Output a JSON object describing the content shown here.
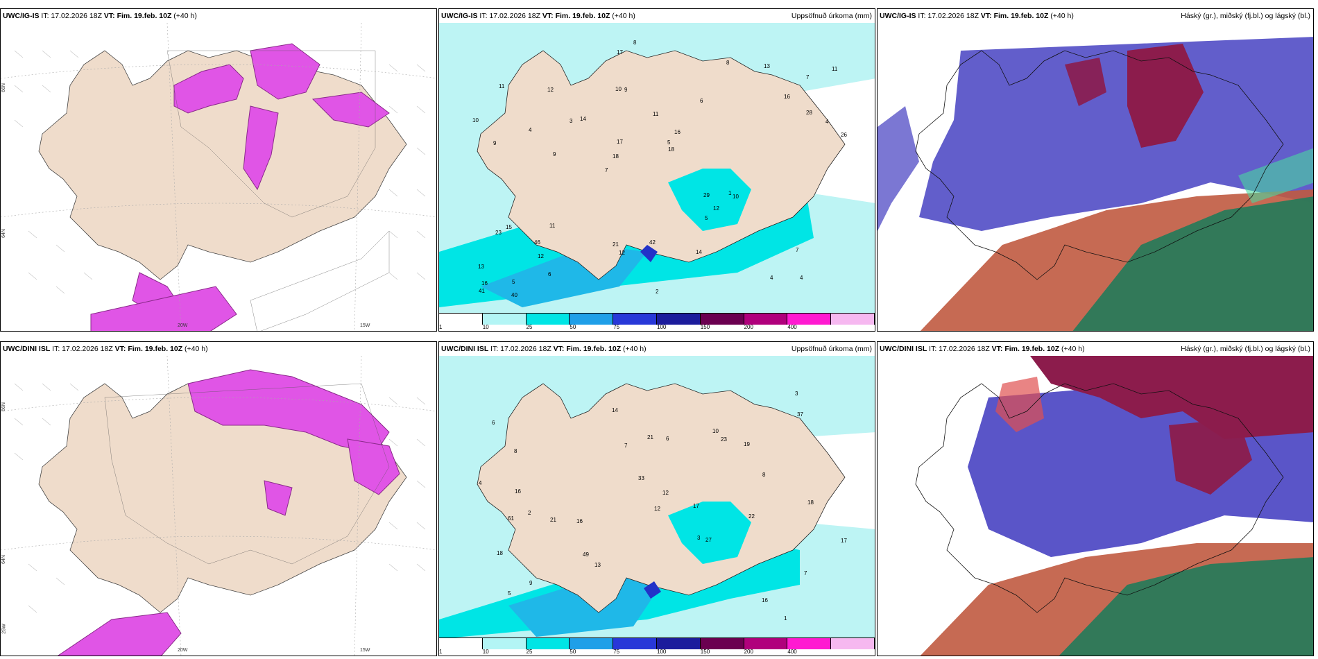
{
  "rows": [
    {
      "model": "UWC/IG-IS",
      "it": "IT: 17.02.2026 18Z",
      "vt_label": "VT:",
      "vt": "Fim. 19.feb. 10Z",
      "lead": "(+40 h)"
    },
    {
      "model": "UWC/DINI ISL",
      "it": "IT: 17.02.2026 18Z",
      "vt_label": "VT:",
      "vt": "Fim. 19.feb. 10Z",
      "lead": "(+40 h)"
    }
  ],
  "titles": {
    "precip": "Uppsöfnuð úrkoma (mm)",
    "cloud": "Háský (gr.), miðský (fj.bl.) og lágský (bl.)"
  },
  "axis_labels": {
    "lat66": "66N",
    "lat64": "64N",
    "lon25": "25W",
    "lon20": "20W",
    "lon15": "15W"
  },
  "legend": {
    "ticks": [
      "1",
      "10",
      "25",
      "50",
      "75",
      "100",
      "150",
      "200",
      "400"
    ],
    "colors": [
      "#ffffff",
      "#b3f5f5",
      "#00e5e5",
      "#1f9fe8",
      "#2838d8",
      "#1c1c9c",
      "#6b0050",
      "#b0007c",
      "#ff1ad1",
      "#f6b8f0"
    ]
  },
  "precip_values": {
    "top": [
      "4",
      "9",
      "7",
      "7",
      "6",
      "5",
      "10",
      "11",
      "15",
      "14",
      "13",
      "12",
      "9",
      "16",
      "10",
      "11",
      "17",
      "26",
      "29",
      "28",
      "18",
      "21",
      "17",
      "12",
      "8",
      "11",
      "4",
      "7",
      "1",
      "2",
      "3",
      "4",
      "5",
      "6",
      "4",
      "5",
      "16",
      "12",
      "18",
      "23",
      "16",
      "11",
      "12",
      "14",
      "46",
      "40",
      "41",
      "42",
      "13",
      "8",
      "9",
      "10"
    ],
    "bottom": [
      "1",
      "2",
      "3",
      "6",
      "7",
      "8",
      "9",
      "16",
      "19",
      "21",
      "23",
      "16",
      "13",
      "14",
      "17",
      "18",
      "22",
      "12",
      "4",
      "5",
      "3",
      "6",
      "8",
      "17",
      "18",
      "16",
      "21",
      "12",
      "33",
      "37",
      "27",
      "61",
      "49",
      "10",
      "7"
    ]
  },
  "colors": {
    "land": "#efdccb",
    "sea_precip": "#bdf4f4",
    "precip_cyan": "#00e5e5",
    "precip_mid": "#1fb8e8",
    "precip_dark": "#2232c8",
    "snow_magenta": "#e055e6",
    "snow_purple": "#8a2a8a",
    "cloud_blue": "#5a55c8",
    "cloud_red": "#8c1c4c",
    "cloud_green": "#2a7a5a",
    "cloud_orange": "#c05a40"
  }
}
